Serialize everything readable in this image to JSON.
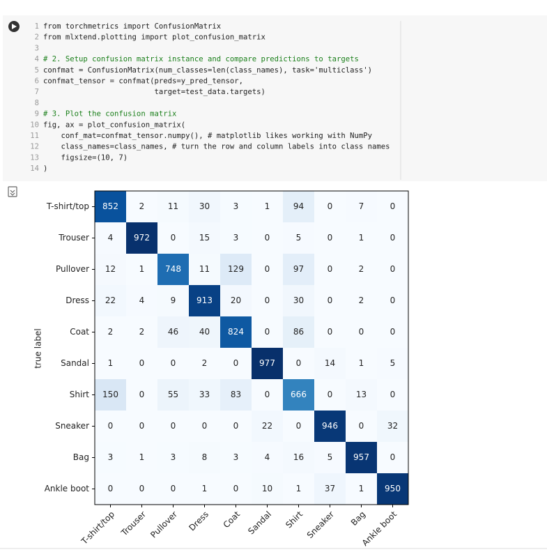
{
  "cell": {
    "lines": [
      {
        "number": 1,
        "code": "from torchmetrics import ConfusionMatrix"
      },
      {
        "number": 2,
        "code": "from mlxtend.plotting import plot_confusion_matrix"
      },
      {
        "number": 3
      },
      {
        "number": 4,
        "code": "# 2. Setup confusion matrix instance and compare predictions to targets"
      },
      {
        "number": 5,
        "code": "confmat = ConfusionMatrix(num_classes=len(class_names), task='multiclass')"
      },
      {
        "number": 6,
        "code": "confmat_tensor = confmat(preds=y_pred_tensor,"
      },
      {
        "number": 7,
        "code": "                         target=test_data.targets)"
      },
      {
        "number": 8
      },
      {
        "number": 9,
        "code": "# 3. Plot the confusion matrix"
      },
      {
        "number": 10,
        "code": "fig, ax = plot_confusion_matrix("
      },
      {
        "number": 11,
        "code": "    conf_mat=confmat_tensor.numpy(), # matplotlib likes working with NumPy"
      },
      {
        "number": 12,
        "code": "    class_names=class_names, # turn the row and column labels into class names"
      },
      {
        "number": 13,
        "code": "    figsize=(10, 7)"
      },
      {
        "number": 14,
        "code": ")"
      }
    ]
  },
  "chart_data": {
    "type": "heatmap",
    "ylabel": "true label",
    "colormap": "Blues",
    "x_categories": [
      "T-shirt/top",
      "Trouser",
      "Pullover",
      "Dress",
      "Coat",
      "Sandal",
      "Shirt",
      "Sneaker",
      "Bag",
      "Ankle boot"
    ],
    "y_categories": [
      "T-shirt/top",
      "Trouser",
      "Pullover",
      "Dress",
      "Coat",
      "Sandal",
      "Shirt",
      "Sneaker",
      "Bag",
      "Ankle boot"
    ],
    "values": [
      [
        852,
        2,
        11,
        30,
        3,
        1,
        94,
        0,
        7,
        0
      ],
      [
        4,
        972,
        0,
        15,
        3,
        0,
        5,
        0,
        1,
        0
      ],
      [
        12,
        1,
        748,
        11,
        129,
        0,
        97,
        0,
        2,
        0
      ],
      [
        22,
        4,
        9,
        913,
        20,
        0,
        30,
        0,
        2,
        0
      ],
      [
        2,
        2,
        46,
        40,
        824,
        0,
        86,
        0,
        0,
        0
      ],
      [
        1,
        0,
        0,
        2,
        0,
        977,
        0,
        14,
        1,
        5
      ],
      [
        150,
        0,
        55,
        33,
        83,
        0,
        666,
        0,
        13,
        0
      ],
      [
        0,
        0,
        0,
        0,
        0,
        22,
        0,
        946,
        0,
        32
      ],
      [
        3,
        1,
        3,
        8,
        3,
        4,
        16,
        5,
        957,
        0
      ],
      [
        0,
        0,
        0,
        1,
        0,
        10,
        1,
        37,
        1,
        950
      ]
    ]
  }
}
